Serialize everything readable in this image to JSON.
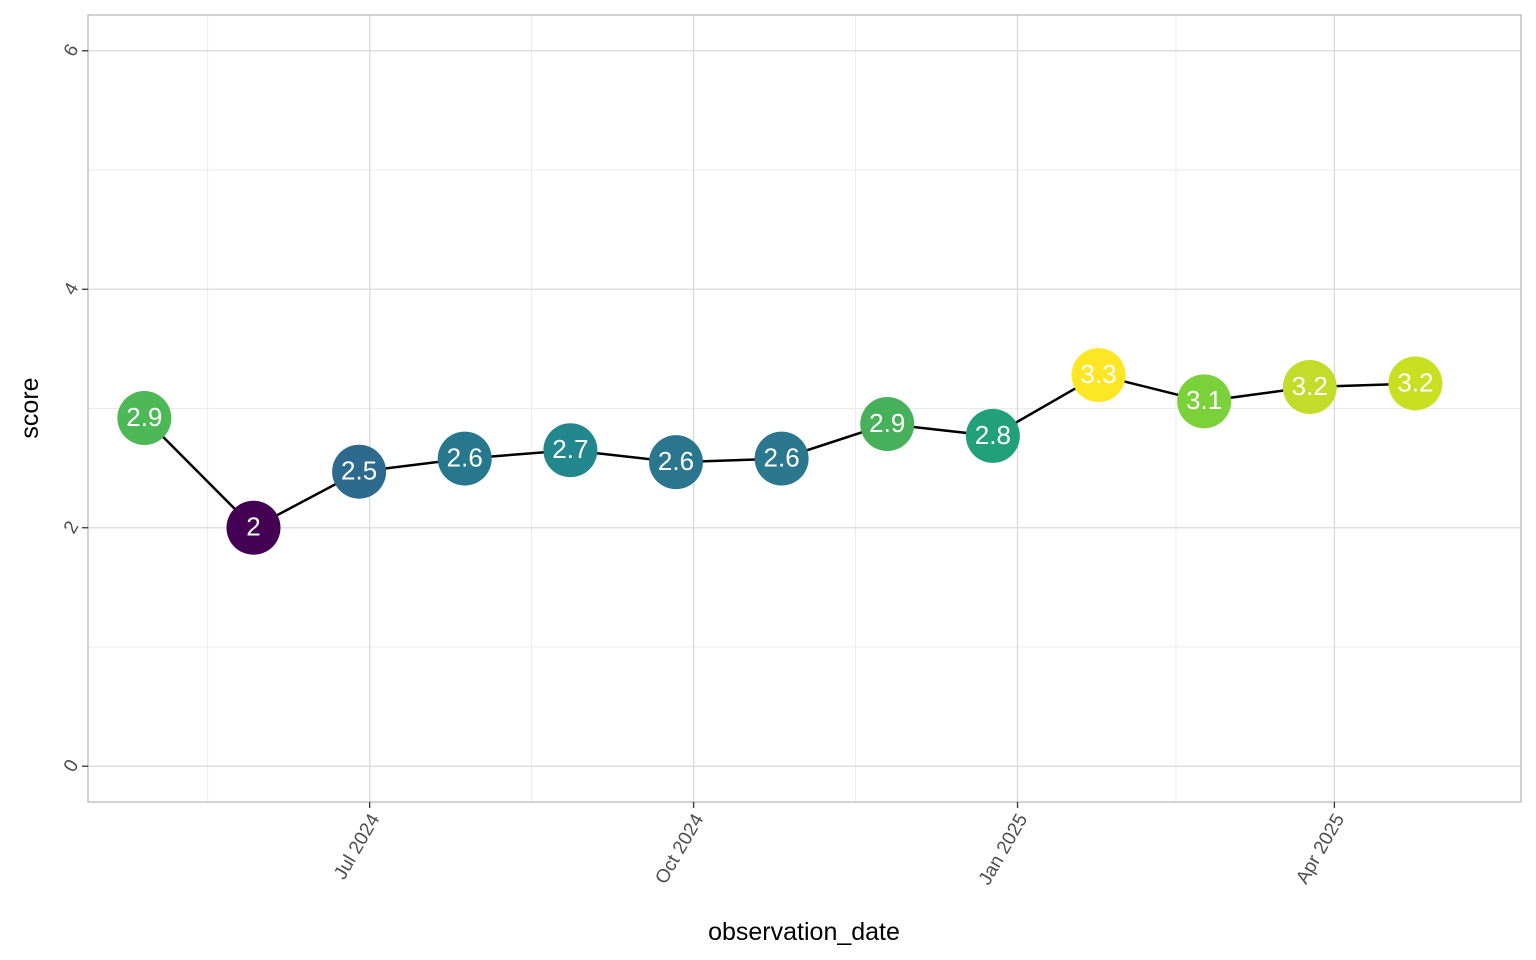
{
  "chart_data": {
    "type": "line",
    "xlabel": "observation_date",
    "ylabel": "score",
    "x_axis": {
      "kind": "date",
      "range": [
        "2024-04-12",
        "2025-05-24"
      ],
      "ticks": [
        {
          "date": "2024-07-01",
          "label": "Jul 2024"
        },
        {
          "date": "2024-10-01",
          "label": "Oct 2024"
        },
        {
          "date": "2025-01-01",
          "label": "Jan 2025"
        },
        {
          "date": "2025-04-01",
          "label": "Apr 2025"
        }
      ],
      "minor_ticks": [
        "2024-05-16",
        "2024-08-16",
        "2024-11-16",
        "2025-02-15"
      ]
    },
    "y_axis": {
      "ylim": [
        -0.3,
        6.3
      ],
      "ticks": [
        0,
        2,
        4,
        6
      ],
      "minor_ticks": [
        1,
        3,
        5
      ]
    },
    "grid": true,
    "line_color": "#000000",
    "points": [
      {
        "x": "2024-04-28",
        "y": 2.92,
        "label": "2.9",
        "color": "#4CB856"
      },
      {
        "x": "2024-05-29",
        "y": 2.0,
        "label": "2",
        "color": "#440154"
      },
      {
        "x": "2024-06-28",
        "y": 2.47,
        "label": "2.5",
        "color": "#2E6A8E"
      },
      {
        "x": "2024-07-28",
        "y": 2.58,
        "label": "2.6",
        "color": "#27788E"
      },
      {
        "x": "2024-08-27",
        "y": 2.65,
        "label": "2.7",
        "color": "#23888E"
      },
      {
        "x": "2024-09-26",
        "y": 2.55,
        "label": "2.6",
        "color": "#2A768E"
      },
      {
        "x": "2024-10-26",
        "y": 2.58,
        "label": "2.6",
        "color": "#2A778E"
      },
      {
        "x": "2024-11-25",
        "y": 2.87,
        "label": "2.9",
        "color": "#46B15A"
      },
      {
        "x": "2024-12-25",
        "y": 2.77,
        "label": "2.8",
        "color": "#21A07A"
      },
      {
        "x": "2025-01-24",
        "y": 3.28,
        "label": "3.3",
        "color": "#FDE725"
      },
      {
        "x": "2025-02-23",
        "y": 3.06,
        "label": "3.1",
        "color": "#7AD13A"
      },
      {
        "x": "2025-03-25",
        "y": 3.18,
        "label": "3.2",
        "color": "#C2DD29"
      },
      {
        "x": "2025-04-24",
        "y": 3.21,
        "label": "3.2",
        "color": "#C9E022"
      }
    ]
  }
}
